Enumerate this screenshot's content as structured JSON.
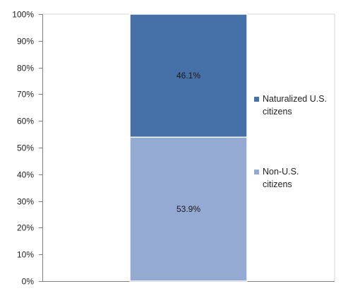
{
  "chart_data": {
    "type": "bar",
    "stacked": true,
    "percent_stacked": true,
    "categories": [
      ""
    ],
    "series": [
      {
        "name": "Non-U.S. citizens",
        "name_lines": [
          "Non-U.S.",
          "citizens"
        ],
        "values": [
          53.9
        ],
        "label": "53.9%",
        "color": "#95aad3"
      },
      {
        "name": "Naturalized U.S. citizens",
        "name_lines": [
          "Naturalized U.S.",
          "citizens"
        ],
        "values": [
          46.1
        ],
        "label": "46.1%",
        "color": "#4571a8"
      }
    ],
    "ylim": [
      0,
      100
    ],
    "yticks": [
      0,
      10,
      20,
      30,
      40,
      50,
      60,
      70,
      80,
      90,
      100
    ],
    "ytick_labels": [
      "0%",
      "10%",
      "20%",
      "30%",
      "40%",
      "50%",
      "60%",
      "70%",
      "80%",
      "90%",
      "100%"
    ],
    "grid": false,
    "legend_position": "right",
    "title": "",
    "xlabel": "",
    "ylabel": ""
  }
}
